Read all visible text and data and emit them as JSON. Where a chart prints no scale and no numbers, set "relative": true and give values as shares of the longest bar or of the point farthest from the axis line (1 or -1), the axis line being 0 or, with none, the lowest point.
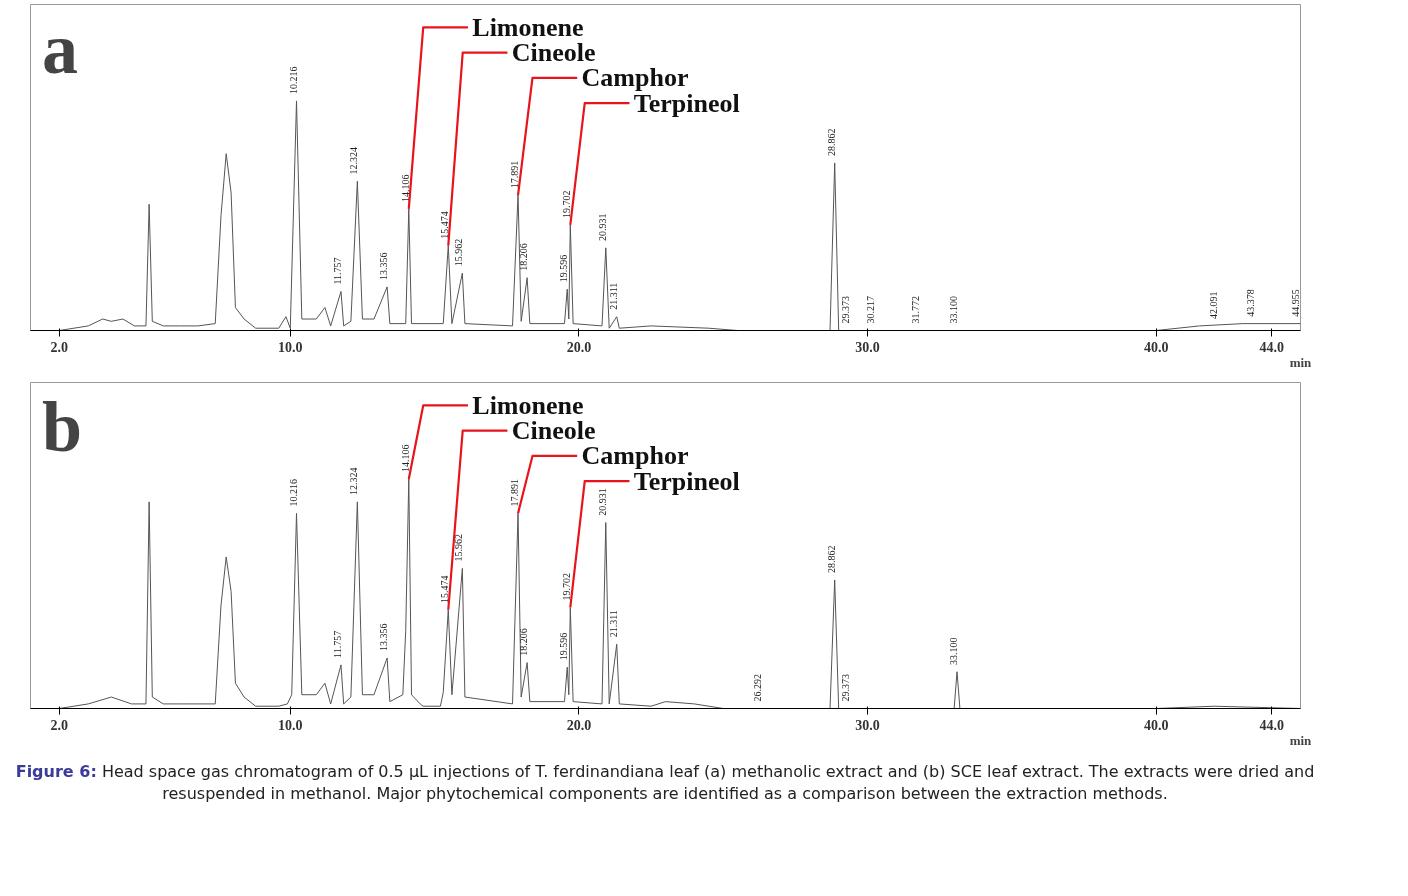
{
  "chart_data": [
    {
      "type": "line",
      "title": "a",
      "xlabel": "min",
      "relative": true,
      "grid": false,
      "marker": "none",
      "line_style": "solid",
      "xlim": [
        1,
        45
      ],
      "xticks": [
        {
          "value": 2,
          "label": "2.0"
        },
        {
          "value": 10,
          "label": "10.0"
        },
        {
          "value": 20,
          "label": "20.0"
        },
        {
          "value": 30,
          "label": "30.0"
        },
        {
          "value": 40,
          "label": "40.0"
        },
        {
          "value": 44,
          "label": "44.0"
        }
      ],
      "series": [
        {
          "color": "#555555",
          "x": [
            1.0,
            2.0,
            3.0,
            3.5,
            3.8,
            4.2,
            4.6,
            5.0,
            5.11,
            5.22,
            5.6,
            6.2,
            6.8,
            7.4,
            7.6,
            7.78,
            7.95,
            8.1,
            8.4,
            8.8,
            9.6,
            9.85,
            10.0,
            10.216,
            10.4,
            10.9,
            11.2,
            11.4,
            11.757,
            11.85,
            12.1,
            12.324,
            12.5,
            12.9,
            13.356,
            13.45,
            14.0,
            14.106,
            14.2,
            15.3,
            15.474,
            15.6,
            15.962,
            16.05,
            17.7,
            17.891,
            18.0,
            18.206,
            18.3,
            19.5,
            19.596,
            19.65,
            19.702,
            19.8,
            20.8,
            20.931,
            21.05,
            21.311,
            21.4,
            22.5,
            24.5,
            25.5,
            28.7,
            28.862,
            29.0,
            40.0,
            41.5,
            43.0,
            45.0
          ],
          "values": [
            0.0,
            0.0,
            0.02,
            0.05,
            0.04,
            0.05,
            0.02,
            0.02,
            0.55,
            0.04,
            0.02,
            0.02,
            0.02,
            0.03,
            0.5,
            0.77,
            0.6,
            0.1,
            0.05,
            0.01,
            0.01,
            0.06,
            0.01,
            1.0,
            0.05,
            0.05,
            0.1,
            0.02,
            0.17,
            0.02,
            0.04,
            0.65,
            0.05,
            0.05,
            0.19,
            0.03,
            0.03,
            0.53,
            0.03,
            0.03,
            0.37,
            0.03,
            0.25,
            0.03,
            0.02,
            0.59,
            0.04,
            0.23,
            0.03,
            0.03,
            0.18,
            0.05,
            0.46,
            0.03,
            0.02,
            0.36,
            0.01,
            0.06,
            0.01,
            0.02,
            0.01,
            0.0,
            0.0,
            0.73,
            0.0,
            0.0,
            0.02,
            0.03,
            0.03
          ]
        }
      ],
      "annotations": [
        {
          "text": "Limonene",
          "x": 14.106,
          "y": 0.53
        },
        {
          "text": "Cineole",
          "x": 15.474,
          "y": 0.37
        },
        {
          "text": "Camphor",
          "x": 17.891,
          "y": 0.59
        },
        {
          "text": "Terpineol",
          "x": 19.702,
          "y": 0.46
        },
        {
          "text": "10.216",
          "x": 10.216,
          "y": 1.0
        },
        {
          "text": "11.757",
          "x": 11.757,
          "y": 0.17
        },
        {
          "text": "12.324",
          "x": 12.324,
          "y": 0.65
        },
        {
          "text": "13.356",
          "x": 13.356,
          "y": 0.19
        },
        {
          "text": "14.106",
          "x": 14.106,
          "y": 0.53
        },
        {
          "text": "15.474",
          "x": 15.474,
          "y": 0.37
        },
        {
          "text": "15.962",
          "x": 15.962,
          "y": 0.25
        },
        {
          "text": "17.891",
          "x": 17.891,
          "y": 0.59
        },
        {
          "text": "18.206",
          "x": 18.206,
          "y": 0.23
        },
        {
          "text": "19.596",
          "x": 19.596,
          "y": 0.18
        },
        {
          "text": "19.702",
          "x": 19.702,
          "y": 0.46
        },
        {
          "text": "20.931",
          "x": 20.931,
          "y": 0.36
        },
        {
          "text": "21.311",
          "x": 21.311,
          "y": 0.06
        },
        {
          "text": "28.862",
          "x": 28.862,
          "y": 0.73
        },
        {
          "text": "29.373",
          "x": 29.373,
          "y": 0.0
        },
        {
          "text": "30.217",
          "x": 30.217,
          "y": 0.0
        },
        {
          "text": "31.772",
          "x": 31.772,
          "y": 0.0
        },
        {
          "text": "33.100",
          "x": 33.1,
          "y": 0.0
        },
        {
          "text": "42.091",
          "x": 42.091,
          "y": 0.02
        },
        {
          "text": "43.378",
          "x": 43.378,
          "y": 0.03
        },
        {
          "text": "44.955",
          "x": 44.955,
          "y": 0.03
        }
      ]
    },
    {
      "type": "line",
      "title": "b",
      "xlabel": "min",
      "relative": true,
      "grid": false,
      "marker": "none",
      "line_style": "solid",
      "xlim": [
        1,
        45
      ],
      "xticks": [
        {
          "value": 2,
          "label": "2.0"
        },
        {
          "value": 10,
          "label": "10.0"
        },
        {
          "value": 20,
          "label": "20.0"
        },
        {
          "value": 30,
          "label": "30.0"
        },
        {
          "value": 40,
          "label": "40.0"
        },
        {
          "value": 44,
          "label": "44.0"
        }
      ],
      "series": [
        {
          "color": "#555555",
          "x": [
            1.0,
            2.0,
            3.0,
            3.8,
            4.5,
            5.0,
            5.11,
            5.22,
            5.6,
            6.2,
            6.8,
            7.4,
            7.6,
            7.78,
            7.95,
            8.1,
            8.4,
            8.8,
            9.6,
            9.9,
            10.05,
            10.216,
            10.4,
            10.9,
            11.2,
            11.4,
            11.757,
            11.85,
            12.1,
            12.324,
            12.5,
            12.9,
            13.356,
            13.45,
            13.9,
            14.0,
            14.106,
            14.2,
            14.5,
            14.6,
            15.2,
            15.3,
            15.474,
            15.6,
            15.962,
            16.05,
            17.7,
            17.891,
            18.0,
            18.206,
            18.3,
            19.5,
            19.596,
            19.65,
            19.702,
            19.8,
            20.8,
            20.931,
            21.05,
            21.311,
            21.4,
            22.5,
            23.0,
            24.0,
            25.0,
            28.7,
            28.862,
            29.0,
            33.0,
            33.1,
            33.2,
            40.0,
            42.0,
            45.0
          ],
          "values": [
            0.0,
            0.0,
            0.02,
            0.05,
            0.02,
            0.02,
            0.9,
            0.05,
            0.02,
            0.02,
            0.02,
            0.02,
            0.45,
            0.66,
            0.51,
            0.11,
            0.05,
            0.01,
            0.01,
            0.02,
            0.06,
            0.85,
            0.06,
            0.06,
            0.11,
            0.02,
            0.19,
            0.02,
            0.05,
            0.9,
            0.06,
            0.06,
            0.22,
            0.03,
            0.06,
            0.34,
            1.0,
            0.06,
            0.02,
            0.01,
            0.01,
            0.07,
            0.43,
            0.06,
            0.61,
            0.05,
            0.02,
            0.85,
            0.05,
            0.2,
            0.03,
            0.03,
            0.18,
            0.06,
            0.44,
            0.03,
            0.02,
            0.81,
            0.02,
            0.28,
            0.02,
            0.01,
            0.03,
            0.02,
            0.0,
            0.0,
            0.56,
            0.0,
            0.0,
            0.16,
            0.0,
            0.0,
            0.01,
            0.0
          ]
        }
      ],
      "annotations": [
        {
          "text": "Limonene",
          "x": 14.106,
          "y": 1.0
        },
        {
          "text": "Cineole",
          "x": 15.474,
          "y": 0.43
        },
        {
          "text": "Camphor",
          "x": 17.891,
          "y": 0.85
        },
        {
          "text": "Terpineol",
          "x": 19.702,
          "y": 0.44
        },
        {
          "text": "10.216",
          "x": 10.216,
          "y": 0.85
        },
        {
          "text": "11.757",
          "x": 11.757,
          "y": 0.19
        },
        {
          "text": "12.324",
          "x": 12.324,
          "y": 0.9
        },
        {
          "text": "13.356",
          "x": 13.356,
          "y": 0.22
        },
        {
          "text": "14.106",
          "x": 14.106,
          "y": 1.0
        },
        {
          "text": "15.474",
          "x": 15.474,
          "y": 0.43
        },
        {
          "text": "15.962",
          "x": 15.962,
          "y": 0.61
        },
        {
          "text": "17.891",
          "x": 17.891,
          "y": 0.85
        },
        {
          "text": "18.206",
          "x": 18.206,
          "y": 0.2
        },
        {
          "text": "19.596",
          "x": 19.596,
          "y": 0.18
        },
        {
          "text": "19.702",
          "x": 19.702,
          "y": 0.44
        },
        {
          "text": "20.931",
          "x": 20.931,
          "y": 0.81
        },
        {
          "text": "21.311",
          "x": 21.311,
          "y": 0.28
        },
        {
          "text": "26.292",
          "x": 26.292,
          "y": 0.0
        },
        {
          "text": "28.862",
          "x": 28.862,
          "y": 0.56
        },
        {
          "text": "29.373",
          "x": 29.373,
          "y": 0.0
        },
        {
          "text": "33.100",
          "x": 33.1,
          "y": 0.16
        },
        "Figure 6: Head space gas chromatogram of 0.5 µL injections of T. ferdinandiana leaf (a) methanolic extract and (b) SCE leaf extract. The extracts were dried and resuspended in methanol. Major phytochemical components are identified as a comparison between the extraction methods."
      ]
    }
  ]
}
